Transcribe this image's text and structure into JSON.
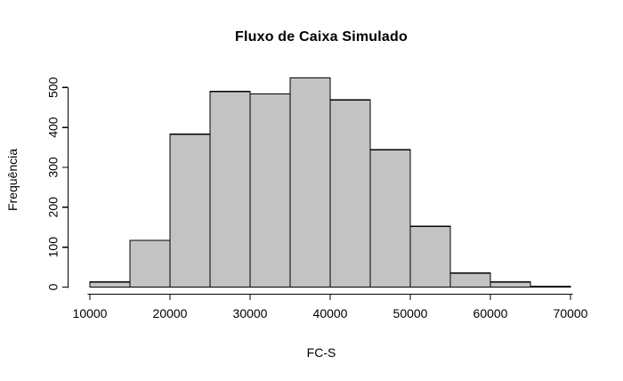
{
  "chart_data": {
    "type": "bar",
    "subtype": "histogram",
    "title": "Fluxo de Caixa Simulado",
    "xlabel": "FC-S",
    "ylabel": "Frequência",
    "bin_breaks": [
      10000,
      15000,
      20000,
      25000,
      30000,
      35000,
      40000,
      45000,
      50000,
      55000,
      60000,
      65000,
      70000
    ],
    "counts": [
      13,
      117,
      383,
      490,
      484,
      524,
      469,
      344,
      152,
      35,
      13,
      2
    ],
    "x_ticks": [
      10000,
      20000,
      30000,
      40000,
      50000,
      60000,
      70000
    ],
    "x_tick_labels": [
      "10000",
      "20000",
      "30000",
      "40000",
      "50000",
      "60000",
      "70000"
    ],
    "y_ticks": [
      0,
      100,
      200,
      300,
      400,
      500
    ],
    "y_tick_labels": [
      "0",
      "100",
      "200",
      "300",
      "400",
      "500"
    ],
    "xlim": [
      10000,
      70000
    ],
    "ylim": [
      0,
      524
    ],
    "grid": false,
    "legend": false,
    "bar_fill": "#c3c3c3",
    "bar_stroke": "#000000",
    "axis_color": "#000000",
    "background": "#ffffff"
  }
}
